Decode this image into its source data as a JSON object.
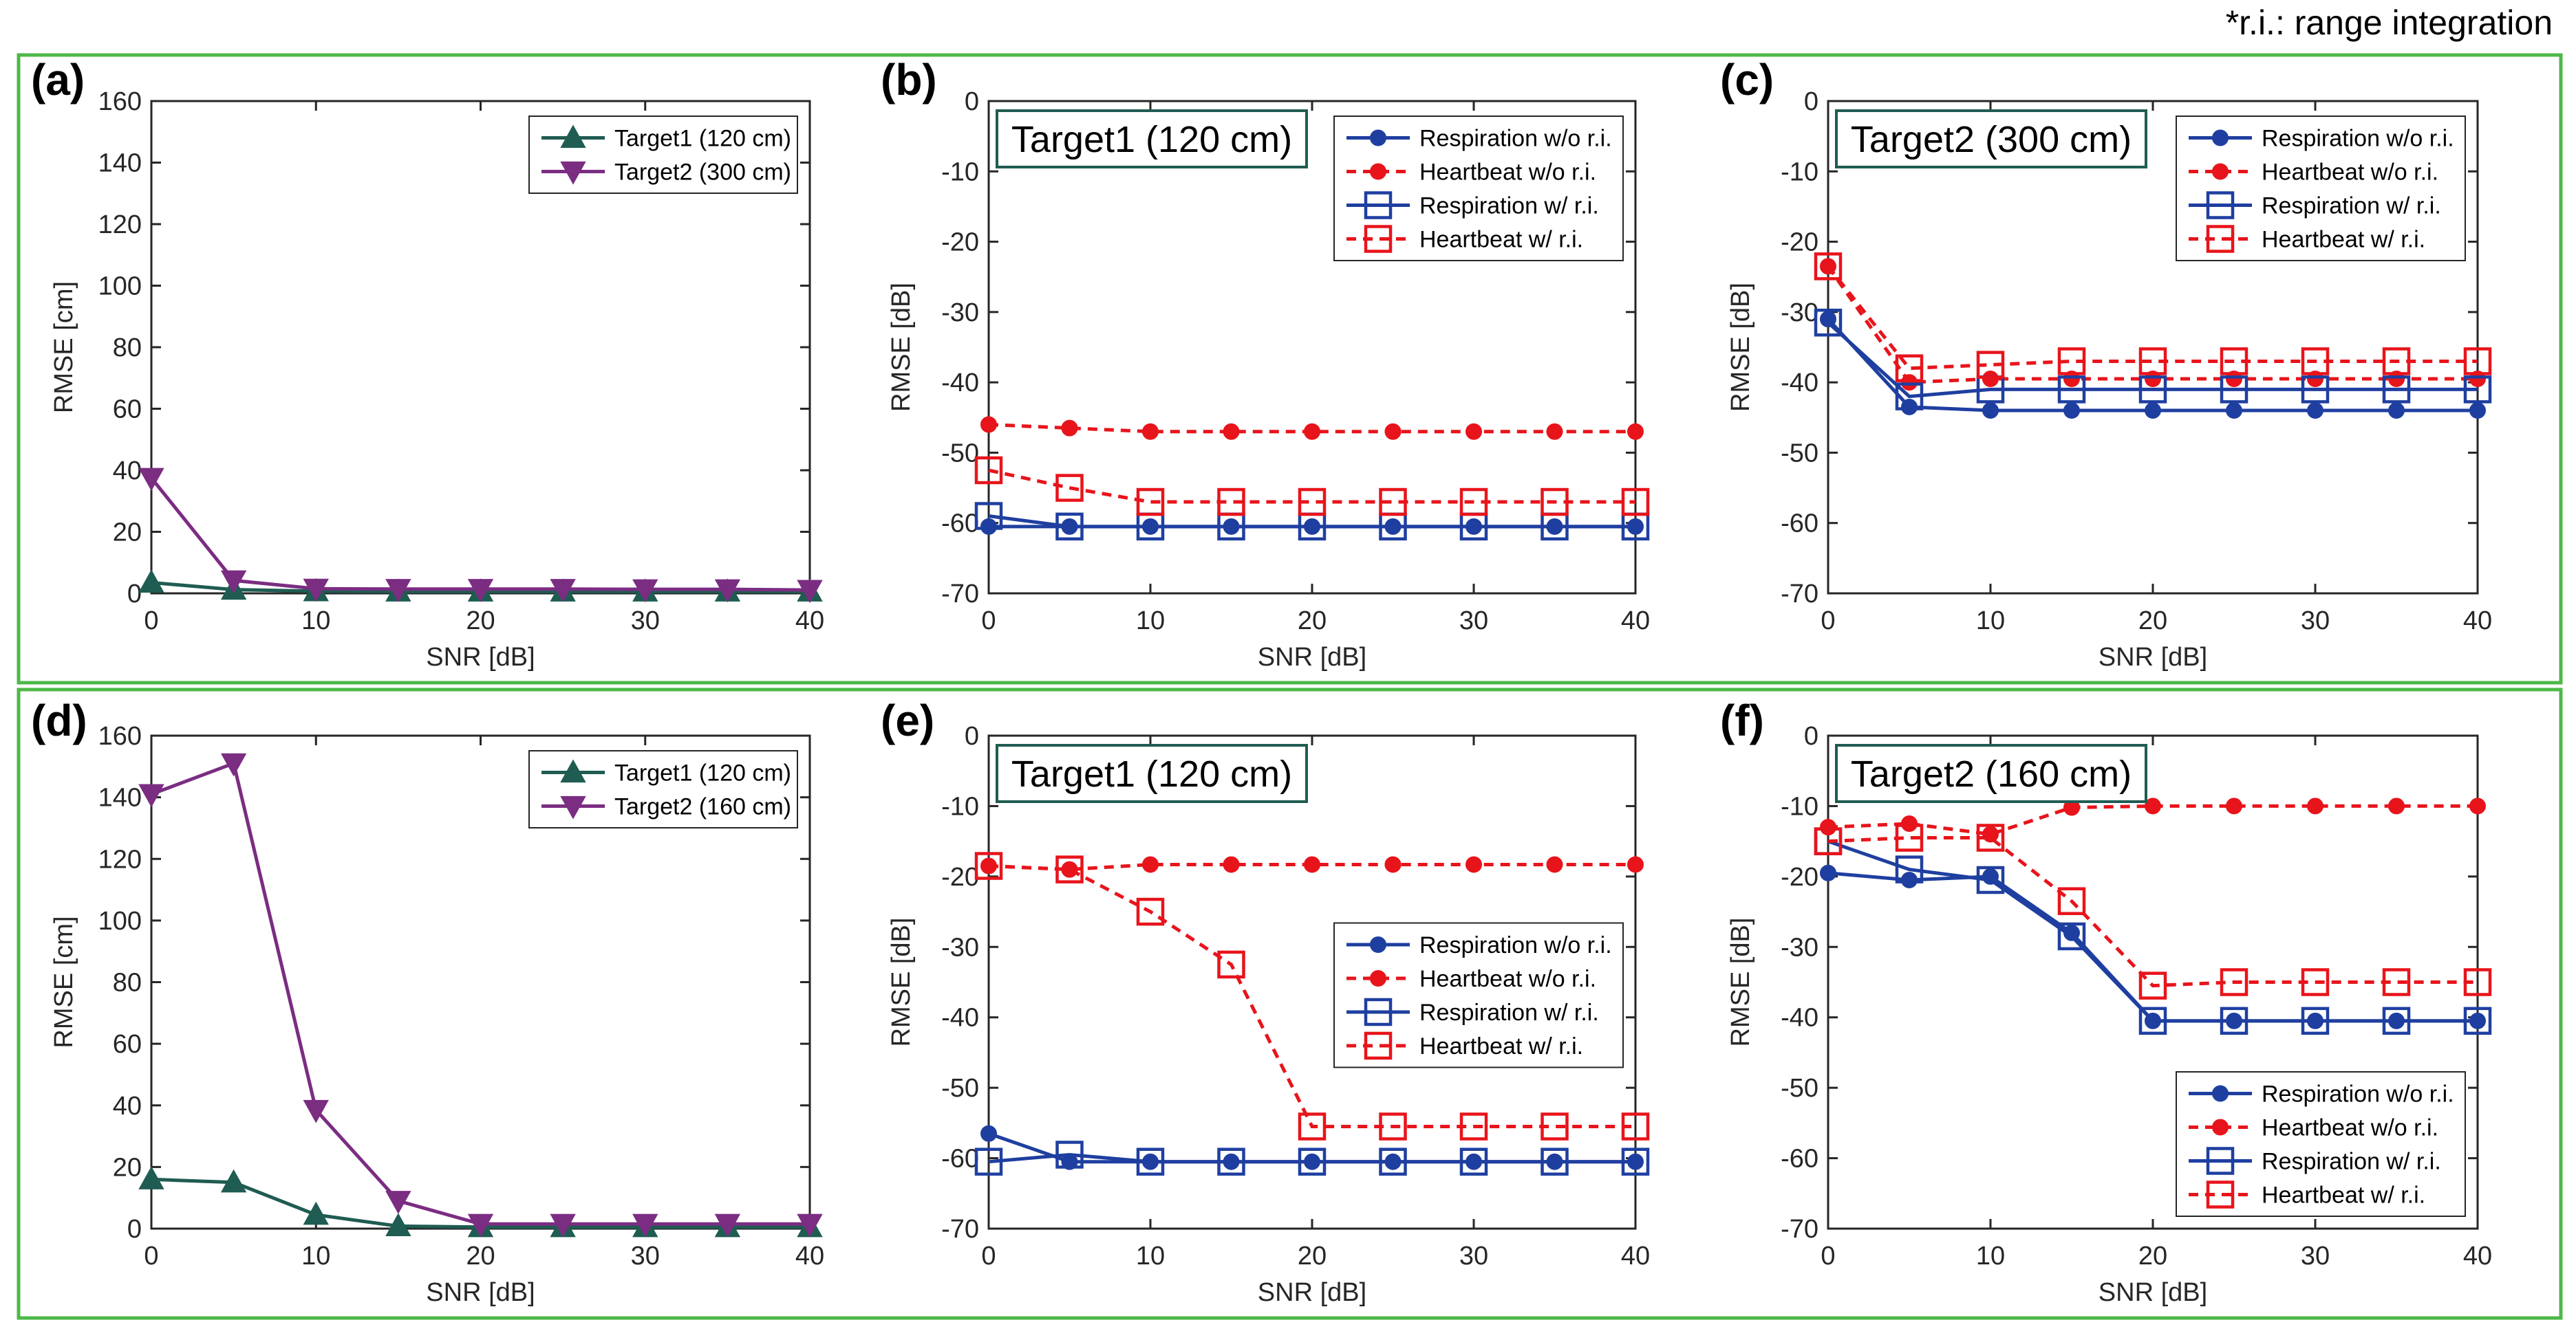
{
  "footnote": "*r.i.: range integration",
  "colors": {
    "frame": "#4db848",
    "target1": "#1f5c52",
    "target2": "#7b2d82",
    "respiration": "#1f3fa0",
    "heartbeat": "#e8141b",
    "target_box": "#1f5c52",
    "axis": "#262626"
  },
  "chart_data": [
    {
      "type": "line",
      "panel": "(a)",
      "xlabel": "SNR [dB]",
      "ylabel": "RMSE [cm]",
      "xlim": [
        0,
        40
      ],
      "ylim": [
        0,
        160
      ],
      "xticks": [
        0,
        10,
        20,
        30,
        40
      ],
      "yticks": [
        0,
        20,
        40,
        60,
        80,
        100,
        120,
        140,
        160
      ],
      "legend_position": "top-right",
      "x": [
        0,
        5,
        10,
        15,
        20,
        25,
        30,
        35,
        40
      ],
      "series": [
        {
          "name": "Target1 (120 cm)",
          "style": "target1",
          "values": [
            3.5,
            1.2,
            0.7,
            0.6,
            0.6,
            0.6,
            0.6,
            0.6,
            0.6
          ]
        },
        {
          "name": "Target2 (300 cm)",
          "style": "target2",
          "values": [
            37.5,
            4.2,
            1.5,
            1.4,
            1.4,
            1.4,
            1.3,
            1.3,
            1.1
          ]
        }
      ]
    },
    {
      "type": "line",
      "panel": "(b)",
      "target_label": "Target1 (120 cm)",
      "xlabel": "SNR [dB]",
      "ylabel": "RMSE [dB]",
      "xlim": [
        0,
        40
      ],
      "ylim": [
        -70,
        0
      ],
      "xticks": [
        0,
        10,
        20,
        30,
        40
      ],
      "yticks": [
        0,
        -10,
        -20,
        -30,
        -40,
        -50,
        -60,
        -70
      ],
      "legend_position": "top-right",
      "x": [
        0,
        5,
        10,
        15,
        20,
        25,
        30,
        35,
        40
      ],
      "series": [
        {
          "name": "Respiration w/o r.i.",
          "style": "resp_wo",
          "values": [
            -60.5,
            -60.5,
            -60.5,
            -60.5,
            -60.5,
            -60.5,
            -60.5,
            -60.5,
            -60.5
          ]
        },
        {
          "name": "Heartbeat w/o r.i.",
          "style": "heart_wo",
          "values": [
            -46,
            -46.5,
            -47,
            -47,
            -47,
            -47,
            -47,
            -47,
            -47
          ]
        },
        {
          "name": "Respiration w/ r.i.",
          "style": "resp_w",
          "values": [
            -59,
            -60.5,
            -60.5,
            -60.5,
            -60.5,
            -60.5,
            -60.5,
            -60.5,
            -60.5
          ]
        },
        {
          "name": "Heartbeat w/ r.i.",
          "style": "heart_w",
          "values": [
            -52.5,
            -55,
            -57,
            -57,
            -57,
            -57,
            -57,
            -57,
            -57
          ]
        }
      ]
    },
    {
      "type": "line",
      "panel": "(c)",
      "target_label": "Target2 (300 cm)",
      "xlabel": "SNR [dB]",
      "ylabel": "RMSE [dB]",
      "xlim": [
        0,
        40
      ],
      "ylim": [
        -70,
        0
      ],
      "xticks": [
        0,
        10,
        20,
        30,
        40
      ],
      "yticks": [
        0,
        -10,
        -20,
        -30,
        -40,
        -50,
        -60,
        -70
      ],
      "legend_position": "top-right",
      "x": [
        0,
        5,
        10,
        15,
        20,
        25,
        30,
        35,
        40
      ],
      "series": [
        {
          "name": "Respiration w/o r.i.",
          "style": "resp_wo",
          "values": [
            -31,
            -43.5,
            -44,
            -44,
            -44,
            -44,
            -44,
            -44,
            -44
          ]
        },
        {
          "name": "Heartbeat w/o r.i.",
          "style": "heart_wo",
          "values": [
            -23.5,
            -40,
            -39.5,
            -39.5,
            -39.5,
            -39.5,
            -39.5,
            -39.5,
            -39.5
          ]
        },
        {
          "name": "Respiration w/ r.i.",
          "style": "resp_w",
          "values": [
            -31.5,
            -42,
            -41,
            -41,
            -41,
            -41,
            -41,
            -41,
            -41
          ]
        },
        {
          "name": "Heartbeat w/ r.i.",
          "style": "heart_w",
          "values": [
            -23.5,
            -38,
            -37.5,
            -37,
            -37,
            -37,
            -37,
            -37,
            -37
          ]
        }
      ]
    },
    {
      "type": "line",
      "panel": "(d)",
      "xlabel": "SNR [dB]",
      "ylabel": "RMSE [cm]",
      "xlim": [
        0,
        40
      ],
      "ylim": [
        0,
        160
      ],
      "xticks": [
        0,
        10,
        20,
        30,
        40
      ],
      "yticks": [
        0,
        20,
        40,
        60,
        80,
        100,
        120,
        140,
        160
      ],
      "legend_position": "top-right",
      "x": [
        0,
        5,
        10,
        15,
        20,
        25,
        30,
        35,
        40
      ],
      "series": [
        {
          "name": "Target1 (120 cm)",
          "style": "target1",
          "values": [
            16,
            15,
            4.5,
            0.8,
            0.5,
            0.5,
            0.5,
            0.5,
            0.5
          ]
        },
        {
          "name": "Target2 (160 cm)",
          "style": "target2",
          "values": [
            141,
            151,
            38.5,
            9,
            1.5,
            1.5,
            1.5,
            1.5,
            1.5
          ]
        }
      ]
    },
    {
      "type": "line",
      "panel": "(e)",
      "target_label": "Target1 (120 cm)",
      "xlabel": "SNR [dB]",
      "ylabel": "RMSE [dB]",
      "xlim": [
        0,
        40
      ],
      "ylim": [
        -70,
        0
      ],
      "xticks": [
        0,
        10,
        20,
        30,
        40
      ],
      "yticks": [
        0,
        -10,
        -20,
        -30,
        -40,
        -50,
        -60,
        -70
      ],
      "legend_position": "right",
      "x": [
        0,
        5,
        10,
        15,
        20,
        25,
        30,
        35,
        40
      ],
      "series": [
        {
          "name": "Respiration w/o r.i.",
          "style": "resp_wo",
          "values": [
            -56.5,
            -60.5,
            -60.5,
            -60.5,
            -60.5,
            -60.5,
            -60.5,
            -60.5,
            -60.5
          ]
        },
        {
          "name": "Heartbeat w/o r.i.",
          "style": "heart_wo",
          "values": [
            -18.5,
            -19,
            -18.3,
            -18.3,
            -18.3,
            -18.3,
            -18.3,
            -18.3,
            -18.3
          ]
        },
        {
          "name": "Respiration w/ r.i.",
          "style": "resp_w",
          "values": [
            -60.5,
            -59.5,
            -60.5,
            -60.5,
            -60.5,
            -60.5,
            -60.5,
            -60.5,
            -60.5
          ]
        },
        {
          "name": "Heartbeat w/ r.i.",
          "style": "heart_w",
          "values": [
            -18.5,
            -19,
            -25,
            -32.5,
            -55.5,
            -55.5,
            -55.5,
            -55.5,
            -55.5
          ]
        }
      ]
    },
    {
      "type": "line",
      "panel": "(f)",
      "target_label": "Target2 (160 cm)",
      "xlabel": "SNR [dB]",
      "ylabel": "RMSE [dB]",
      "xlim": [
        0,
        40
      ],
      "ylim": [
        -70,
        0
      ],
      "xticks": [
        0,
        10,
        20,
        30,
        40
      ],
      "yticks": [
        0,
        -10,
        -20,
        -30,
        -40,
        -50,
        -60,
        -70
      ],
      "legend_position": "bottom-right",
      "x": [
        0,
        5,
        10,
        15,
        20,
        25,
        30,
        35,
        40
      ],
      "series": [
        {
          "name": "Respiration w/o r.i.",
          "style": "resp_wo",
          "values": [
            -19.5,
            -20.5,
            -20,
            -28,
            -40.5,
            -40.5,
            -40.5,
            -40.5,
            -40.5
          ]
        },
        {
          "name": "Heartbeat w/o r.i.",
          "style": "heart_wo",
          "values": [
            -13,
            -12.5,
            -14,
            -10.2,
            -10,
            -10,
            -10,
            -10,
            -10
          ]
        },
        {
          "name": "Respiration w/ r.i.",
          "style": "resp_w",
          "values": [
            -15,
            -19,
            -20.5,
            -28.5,
            -40.5,
            -40.5,
            -40.5,
            -40.5,
            -40.5
          ]
        },
        {
          "name": "Heartbeat w/ r.i.",
          "style": "heart_w",
          "values": [
            -15,
            -14.5,
            -14.5,
            -23.5,
            -35.5,
            -35,
            -35,
            -35,
            -35
          ]
        }
      ]
    }
  ]
}
